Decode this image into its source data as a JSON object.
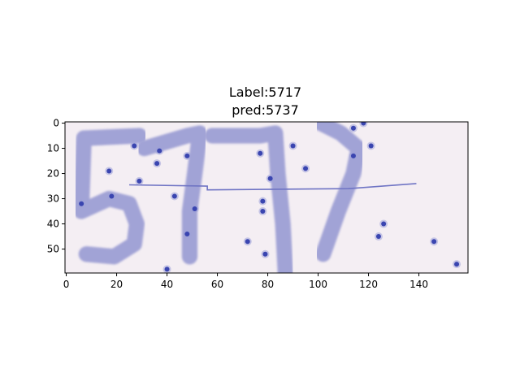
{
  "chart_data": {
    "type": "heatmap",
    "title_lines": [
      "Label:5717",
      "pred:5737"
    ],
    "xlabel": "",
    "ylabel": "",
    "image_width": 160,
    "image_height": 60,
    "xlim": [
      -0.5,
      159.5
    ],
    "ylim": [
      59.5,
      -0.5
    ],
    "x_ticks": [
      0,
      20,
      40,
      60,
      80,
      100,
      120,
      140
    ],
    "y_ticks": [
      0,
      10,
      20,
      30,
      40,
      50
    ],
    "background_color": "#f4eef3",
    "stroke_color": "#a1a3d6",
    "noise_color": "#3a45b0",
    "digit_strokes": [
      {
        "digit": "5",
        "paths": [
          [
            [
              29,
              5
            ],
            [
              7,
              6
            ],
            [
              6,
              35
            ],
            [
              17,
              30
            ],
            [
              25,
              32
            ],
            [
              28,
              40
            ],
            [
              27,
              48
            ],
            [
              19,
              53
            ],
            [
              8,
              52
            ]
          ]
        ]
      },
      {
        "digit": "7",
        "paths": [
          [
            [
              31,
              10
            ],
            [
              48,
              5
            ],
            [
              53,
              4
            ],
            [
              51,
              20
            ],
            [
              49,
              35
            ],
            [
              49,
              53
            ]
          ]
        ]
      },
      {
        "digit": "7",
        "paths": [
          [
            [
              58,
              5
            ],
            [
              77,
              5
            ],
            [
              83,
              4
            ],
            [
              84,
              20
            ],
            [
              86,
              40
            ],
            [
              87,
              59
            ]
          ]
        ]
      },
      {
        "digit": "7",
        "paths": [
          [
            [
              101,
              0
            ],
            [
              109,
              4
            ],
            [
              116,
              10
            ],
            [
              114,
              20
            ],
            [
              108,
              35
            ],
            [
              102,
              52
            ]
          ]
        ]
      }
    ],
    "horizontal_line": [
      [
        25,
        24.5
      ],
      [
        56,
        25
      ],
      [
        56,
        26.5
      ],
      [
        112,
        26
      ],
      [
        139,
        24
      ]
    ],
    "noise_points": [
      [
        27,
        9
      ],
      [
        37,
        11
      ],
      [
        36,
        16
      ],
      [
        48,
        13
      ],
      [
        17,
        19
      ],
      [
        29,
        23
      ],
      [
        18,
        29
      ],
      [
        6,
        32
      ],
      [
        43,
        29
      ],
      [
        51,
        34
      ],
      [
        48,
        44
      ],
      [
        40,
        58
      ],
      [
        72,
        47
      ],
      [
        77,
        12
      ],
      [
        81,
        22
      ],
      [
        78,
        31
      ],
      [
        78,
        35
      ],
      [
        79,
        52
      ],
      [
        90,
        9
      ],
      [
        95,
        18
      ],
      [
        114,
        2
      ],
      [
        118,
        0
      ],
      [
        121,
        9
      ],
      [
        114,
        13
      ],
      [
        126,
        40
      ],
      [
        124,
        45
      ],
      [
        146,
        47
      ],
      [
        155,
        56
      ]
    ]
  }
}
